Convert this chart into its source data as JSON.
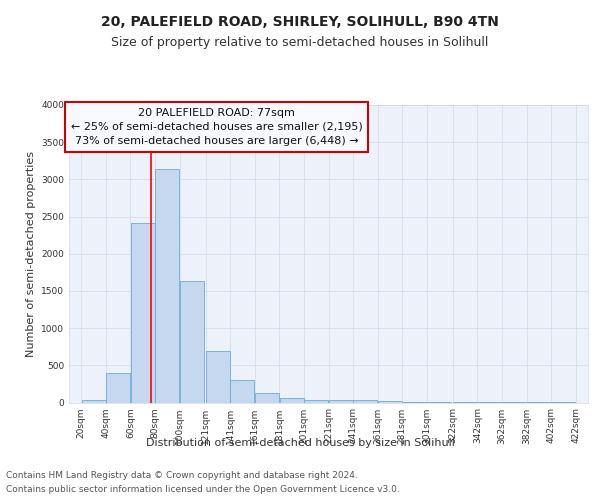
{
  "title1": "20, PALEFIELD ROAD, SHIRLEY, SOLIHULL, B90 4TN",
  "title2": "Size of property relative to semi-detached houses in Solihull",
  "xlabel": "Distribution of semi-detached houses by size in Solihull",
  "ylabel": "Number of semi-detached properties",
  "footer1": "Contains HM Land Registry data © Crown copyright and database right 2024.",
  "footer2": "Contains public sector information licensed under the Open Government Licence v3.0.",
  "annotation_line1": "20 PALEFIELD ROAD: 77sqm",
  "annotation_line2": "← 25% of semi-detached houses are smaller (2,195)",
  "annotation_line3": "73% of semi-detached houses are larger (6,448) →",
  "bar_left_edges": [
    20,
    40,
    60,
    80,
    100,
    121,
    141,
    161,
    181,
    201,
    221,
    241,
    261,
    281,
    301,
    322,
    342,
    362,
    382,
    402
  ],
  "bar_widths": [
    20,
    20,
    20,
    20,
    20,
    20,
    20,
    20,
    20,
    20,
    20,
    20,
    20,
    20,
    20,
    20,
    20,
    20,
    20,
    20
  ],
  "bar_heights": [
    30,
    390,
    2420,
    3140,
    1640,
    695,
    300,
    130,
    65,
    35,
    30,
    30,
    15,
    10,
    5,
    5,
    5,
    5,
    5,
    5
  ],
  "tick_labels": [
    "20sqm",
    "40sqm",
    "60sqm",
    "80sqm",
    "100sqm",
    "121sqm",
    "141sqm",
    "161sqm",
    "181sqm",
    "201sqm",
    "221sqm",
    "241sqm",
    "261sqm",
    "281sqm",
    "301sqm",
    "322sqm",
    "342sqm",
    "362sqm",
    "382sqm",
    "402sqm",
    "422sqm"
  ],
  "tick_positions": [
    20,
    40,
    60,
    80,
    100,
    121,
    141,
    161,
    181,
    201,
    221,
    241,
    261,
    281,
    301,
    322,
    342,
    362,
    382,
    402,
    422
  ],
  "ylim": [
    0,
    4000
  ],
  "xlim": [
    10,
    432
  ],
  "bar_color": "#c5d8f0",
  "bar_edge_color": "#6aaed6",
  "red_line_x": 77,
  "grid_color": "#d0d8e8",
  "bg_color": "#edf2fa",
  "annotation_box_facecolor": "#f8f9ff",
  "annotation_box_edge": "#cc0000",
  "title1_fontsize": 10,
  "title2_fontsize": 9,
  "axis_label_fontsize": 8,
  "tick_fontsize": 6.5,
  "annotation_fontsize": 8,
  "footer_fontsize": 6.5
}
